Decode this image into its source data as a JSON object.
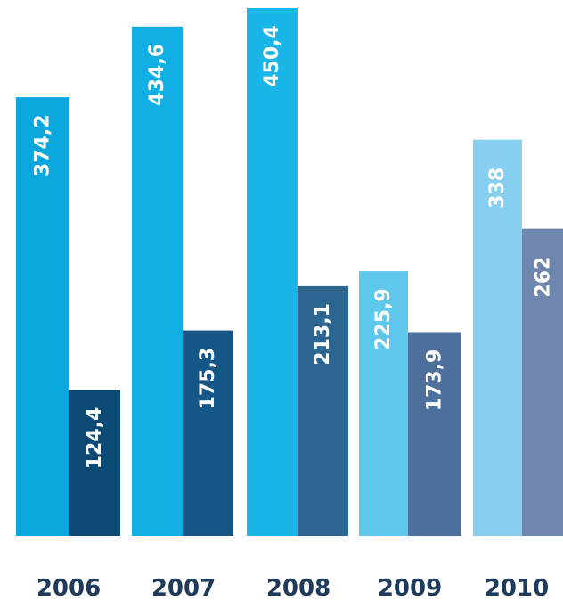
{
  "chart_data": {
    "type": "bar",
    "title": "",
    "xlabel": "",
    "ylabel": "",
    "categories": [
      "2006",
      "2007",
      "2008",
      "2009",
      "2010"
    ],
    "series": [
      {
        "values": [
          374.2,
          434.6,
          450.4,
          225.9,
          338
        ],
        "value_labels": [
          "374,2",
          "434,6",
          "450,4",
          "225,9",
          "338"
        ],
        "colors": [
          "#0aa6dc",
          "#10aee2",
          "#1ab6e8",
          "#5fc6ec",
          "#86cfef"
        ]
      },
      {
        "values": [
          124.4,
          175.3,
          213.1,
          173.9,
          262
        ],
        "value_labels": [
          "124,4",
          "175,3",
          "213,1",
          "173,9",
          "262"
        ],
        "colors": [
          "#0c4a76",
          "#155686",
          "#2c6590",
          "#4d6f9b",
          "#6f87ae"
        ]
      }
    ],
    "ylim": [
      0,
      450.4
    ],
    "grid": false,
    "legend": "none"
  }
}
